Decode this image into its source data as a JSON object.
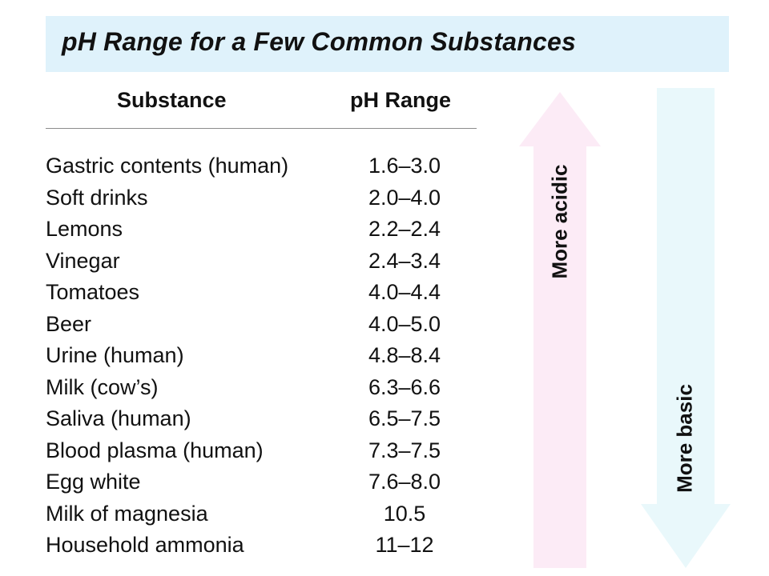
{
  "title": "pH Range for a Few Common Substances",
  "headers": {
    "substance": "Substance",
    "ph_range": "pH Range"
  },
  "rows": [
    {
      "substance": "Gastric contents (human)",
      "range": "1.6–3.0"
    },
    {
      "substance": "Soft drinks",
      "range": "2.0–4.0"
    },
    {
      "substance": "Lemons",
      "range": "2.2–2.4"
    },
    {
      "substance": "Vinegar",
      "range": "2.4–3.4"
    },
    {
      "substance": "Tomatoes",
      "range": "4.0–4.4"
    },
    {
      "substance": "Beer",
      "range": "4.0–5.0"
    },
    {
      "substance": "Urine (human)",
      "range": "4.8–8.4"
    },
    {
      "substance": "Milk (cow’s)",
      "range": "6.3–6.6"
    },
    {
      "substance": "Saliva (human)",
      "range": "6.5–7.5"
    },
    {
      "substance": "Blood plasma (human)",
      "range": "7.3–7.5"
    },
    {
      "substance": "Egg white",
      "range": "7.6–8.0"
    },
    {
      "substance": "Milk of magnesia",
      "range": "10.5"
    },
    {
      "substance": "Household ammonia",
      "range": "11–12"
    }
  ],
  "arrows": {
    "acidic_label": "More acidic",
    "basic_label": "More basic"
  },
  "colors": {
    "title_banner": "#dff2fb",
    "acidic_arrow": "#fcebf6",
    "basic_arrow": "#e9f8fb",
    "header_rule": "#8c8c8c"
  }
}
